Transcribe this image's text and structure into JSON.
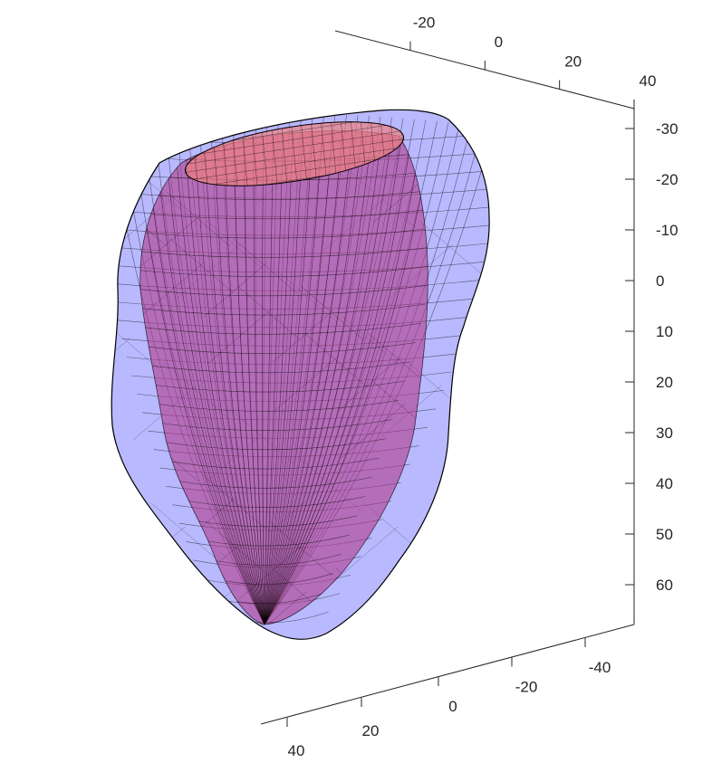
{
  "chart_data": {
    "type": "3d-surface-mesh",
    "title": "",
    "xlabel": "",
    "ylabel": "",
    "zlabel": "",
    "grid": false,
    "axes": {
      "top_axis": {
        "ticks": [
          -20,
          0,
          20,
          40
        ],
        "labels": [
          "-20",
          "0",
          "20",
          "40"
        ]
      },
      "vertical_axis": {
        "direction": "reversed",
        "ticks": [
          -30,
          -20,
          -10,
          0,
          10,
          20,
          30,
          40,
          50,
          60
        ],
        "labels": [
          "-30",
          "-20",
          "-10",
          "0",
          "10",
          "20",
          "30",
          "40",
          "50",
          "60"
        ]
      },
      "bottom_right_axis": {
        "ticks": [
          -40,
          -20,
          0
        ],
        "labels": [
          "-40",
          "-20",
          "0"
        ]
      },
      "bottom_left_axis": {
        "ticks": [
          20,
          40
        ],
        "labels": [
          "20",
          "40"
        ]
      }
    },
    "series": [
      {
        "surface": "outer",
        "color": "#8080ff",
        "face_alpha": 0.55,
        "edge_color": "#000000"
      },
      {
        "surface": "inner",
        "color": "#b03a8a",
        "face_alpha": 0.6,
        "edge_color": "#000000"
      },
      {
        "surface": "opening",
        "color": "#f08080",
        "face_alpha": 0.7,
        "edge_color": "#000000"
      }
    ]
  }
}
